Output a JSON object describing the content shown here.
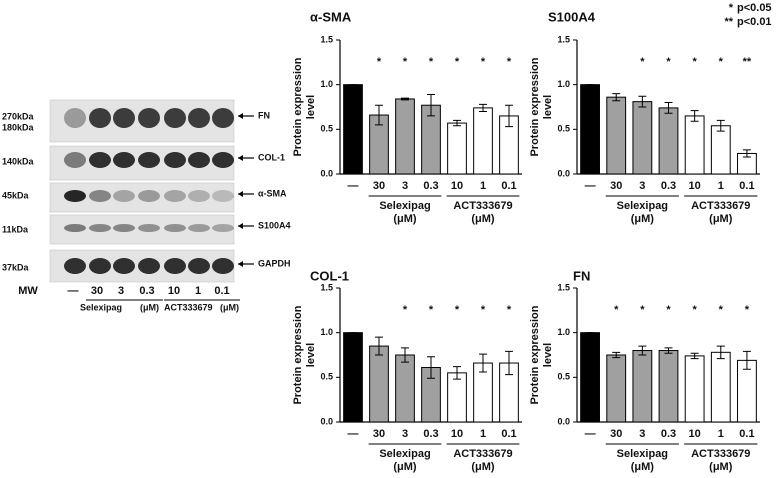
{
  "blot": {
    "kda_labels": [
      "270kDa",
      "180kDa",
      "140kDa",
      "45kDa",
      "11kDa",
      "37kDa"
    ],
    "proteins": [
      "FN",
      "COL-1",
      "α-SMA",
      "S100A4",
      "GAPDH"
    ],
    "lanes": [
      "MW",
      "—",
      "30",
      "3",
      "0.3",
      "10",
      "1",
      "0.1"
    ],
    "groups": [
      {
        "label": "Selexipag",
        "unit": "(μM)"
      },
      {
        "label": "ACT333679",
        "unit": "(μM)"
      }
    ]
  },
  "significance_legend": [
    {
      "symbol": "*",
      "text": "p<0.05"
    },
    {
      "symbol": "**",
      "text": "p<0.01"
    }
  ],
  "chart_data": [
    {
      "type": "bar",
      "title": "α-SMA",
      "y_label": [
        "Protein expression",
        "level"
      ],
      "categories": [
        "—",
        "30",
        "3",
        "0.3",
        "10",
        "1",
        "0.1"
      ],
      "values": [
        1.0,
        0.66,
        0.84,
        0.77,
        0.57,
        0.74,
        0.65
      ],
      "errors": [
        0,
        0.11,
        0.01,
        0.12,
        0.03,
        0.04,
        0.12
      ],
      "colors": [
        "#000000",
        "#a0a0a0",
        "#a0a0a0",
        "#a0a0a0",
        "#ffffff",
        "#ffffff",
        "#ffffff"
      ],
      "stars": [
        null,
        "*",
        "*",
        "*",
        "*",
        "*",
        "*"
      ],
      "groups": [
        {
          "label": "Selexipag",
          "unit": "(μM)"
        },
        {
          "label": "ACT333679",
          "unit": "(μM)"
        }
      ],
      "ylim": [
        0,
        1.5
      ],
      "yticks": [
        {
          "value": 0,
          "label": "0.0"
        },
        {
          "value": 0.5,
          "label": "0.5"
        },
        {
          "value": 1,
          "label": "1.0"
        },
        {
          "value": 1.5,
          "label": "1.5"
        }
      ]
    },
    {
      "type": "bar",
      "title": "S100A4",
      "y_label": [
        "Protein expression",
        "level"
      ],
      "categories": [
        "—",
        "30",
        "3",
        "0.3",
        "10",
        "1",
        "0.1"
      ],
      "values": [
        1.0,
        0.86,
        0.81,
        0.74,
        0.65,
        0.54,
        0.23
      ],
      "errors": [
        0,
        0.04,
        0.06,
        0.06,
        0.06,
        0.06,
        0.04
      ],
      "colors": [
        "#000000",
        "#a0a0a0",
        "#a0a0a0",
        "#a0a0a0",
        "#ffffff",
        "#ffffff",
        "#ffffff"
      ],
      "stars": [
        null,
        null,
        "*",
        "*",
        "*",
        "*",
        "**"
      ],
      "groups": [
        {
          "label": "Selexipag",
          "unit": "(μM)"
        },
        {
          "label": "ACT333679",
          "unit": "(μM)"
        }
      ],
      "ylim": [
        0,
        1.5
      ],
      "yticks": [
        {
          "value": 0,
          "label": "0.0"
        },
        {
          "value": 0.5,
          "label": "0.5"
        },
        {
          "value": 1,
          "label": "1.0"
        },
        {
          "value": 1.5,
          "label": "1.5"
        }
      ]
    },
    {
      "type": "bar",
      "title": "COL-1",
      "y_label": [
        "Protein expression",
        "level"
      ],
      "categories": [
        "—",
        "30",
        "3",
        "0.3",
        "10",
        "1",
        "0.1"
      ],
      "values": [
        1.0,
        0.85,
        0.75,
        0.61,
        0.55,
        0.66,
        0.66
      ],
      "errors": [
        0,
        0.1,
        0.08,
        0.12,
        0.07,
        0.1,
        0.13
      ],
      "colors": [
        "#000000",
        "#a0a0a0",
        "#a0a0a0",
        "#a0a0a0",
        "#ffffff",
        "#ffffff",
        "#ffffff"
      ],
      "stars": [
        null,
        null,
        "*",
        "*",
        "*",
        "*",
        "*"
      ],
      "groups": [
        {
          "label": "Selexipag",
          "unit": "(μM)"
        },
        {
          "label": "ACT333679",
          "unit": "(μM)"
        }
      ],
      "ylim": [
        0,
        1.5
      ],
      "yticks": [
        {
          "value": 0,
          "label": "0.0"
        },
        {
          "value": 0.5,
          "label": "0.5"
        },
        {
          "value": 1,
          "label": "1.0"
        },
        {
          "value": 1.5,
          "label": "1.5"
        }
      ]
    },
    {
      "type": "bar",
      "title": "FN",
      "y_label": [
        "Protein expression",
        "level"
      ],
      "categories": [
        "—",
        "30",
        "3",
        "0.3",
        "10",
        "1",
        "0.1"
      ],
      "values": [
        1.0,
        0.75,
        0.8,
        0.8,
        0.74,
        0.78,
        0.69
      ],
      "errors": [
        0,
        0.03,
        0.05,
        0.03,
        0.03,
        0.07,
        0.1
      ],
      "colors": [
        "#000000",
        "#a0a0a0",
        "#a0a0a0",
        "#a0a0a0",
        "#ffffff",
        "#ffffff",
        "#ffffff"
      ],
      "stars": [
        null,
        "*",
        "*",
        "*",
        "*",
        "*",
        "*"
      ],
      "groups": [
        {
          "label": "Selexipag",
          "unit": "(μM)"
        },
        {
          "label": "ACT333679",
          "unit": "(μM)"
        }
      ],
      "ylim": [
        0,
        1.5
      ],
      "yticks": [
        {
          "value": 0,
          "label": "0.0"
        },
        {
          "value": 0.5,
          "label": "0.5"
        },
        {
          "value": 1,
          "label": "1.0"
        },
        {
          "value": 1.5,
          "label": "1.5"
        }
      ]
    }
  ]
}
